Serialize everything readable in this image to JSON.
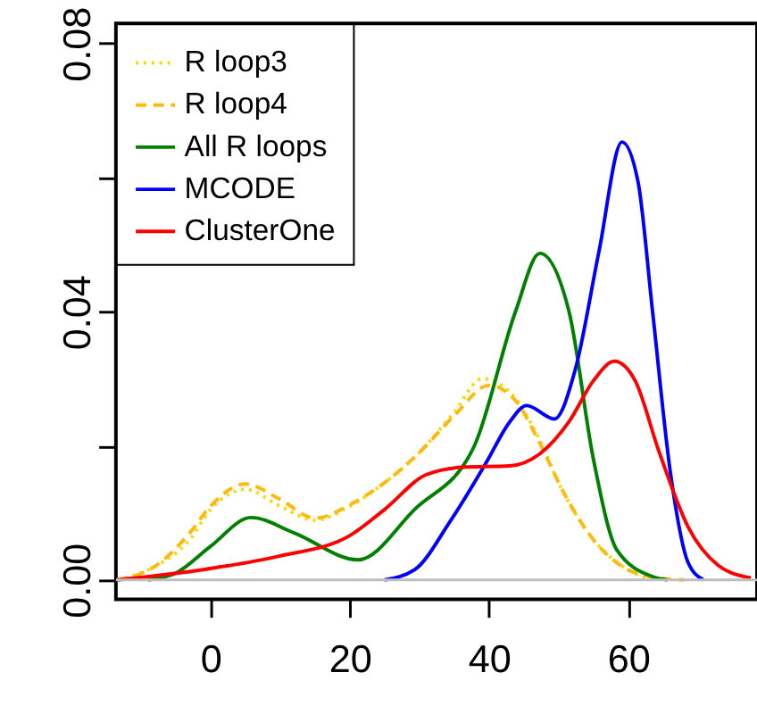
{
  "chart_data": {
    "type": "line",
    "xlim": [
      -13.6,
      78.5
    ],
    "ylim": [
      -0.0029,
      0.083
    ],
    "xticks": [
      0,
      20,
      40,
      60
    ],
    "yticks": [
      {
        "value": 0,
        "label": "0.00"
      },
      {
        "value": 0.02,
        "label": null
      },
      {
        "value": 0.04,
        "label": "0.04"
      },
      {
        "value": 0.06,
        "label": null
      },
      {
        "value": 0.08,
        "label": "0.08"
      }
    ],
    "grid": false,
    "legend": "top left",
    "marker": "none",
    "ref_lines": [
      {
        "axis": "y",
        "value": 0,
        "color": "#bebebe",
        "line_style": "solid"
      }
    ],
    "series": [
      {
        "name": "R loop3",
        "color": "#ffd700",
        "line_style": "dotted",
        "x": [
          -13.4,
          -8,
          -3,
          0,
          5,
          10,
          15,
          20,
          25,
          30,
          35,
          39,
          43,
          46.4,
          50.7,
          55,
          60,
          63.5
        ],
        "values": [
          0,
          0.002,
          0.006,
          0.0105,
          0.0135,
          0.011,
          0.0089,
          0.011,
          0.0145,
          0.019,
          0.025,
          0.03,
          0.028,
          0.0227,
          0.013,
          0.006,
          0.0015,
          0
        ]
      },
      {
        "name": "R loop4",
        "color": "#ffb90f",
        "line_style": "dashed",
        "x": [
          -13.4,
          -8,
          -3,
          0,
          5,
          10,
          15,
          20,
          25,
          30,
          35,
          40,
          44,
          47,
          51,
          55,
          60,
          65,
          68
        ],
        "values": [
          0,
          0.002,
          0.007,
          0.011,
          0.0143,
          0.012,
          0.0092,
          0.0112,
          0.0145,
          0.019,
          0.0245,
          0.029,
          0.0265,
          0.021,
          0.0125,
          0.006,
          0.0015,
          0.0002,
          0
        ]
      },
      {
        "name": "All R loops",
        "color": "#008000",
        "line_style": "solid",
        "x": [
          -9,
          -5,
          0,
          5.8,
          12,
          21.2,
          29.3,
          37.9,
          43.8,
          47.3,
          51.5,
          55,
          58.4,
          63.5,
          65.6
        ],
        "values": [
          0,
          0.001,
          0.005,
          0.0093,
          0.007,
          0.003,
          0.0105,
          0.02,
          0.04,
          0.0487,
          0.04,
          0.018,
          0.0044,
          0.0005,
          0
        ]
      },
      {
        "name": "MCODE",
        "color": "#0000ff",
        "line_style": "solid",
        "x": [
          25,
          29.3,
          34.4,
          39.6,
          43,
          45.4,
          49.4,
          52.4,
          55.8,
          59.1,
          61.4,
          63.5,
          66.1,
          68.6,
          70.8
        ],
        "values": [
          0,
          0.0015,
          0.0087,
          0.0175,
          0.0236,
          0.026,
          0.024,
          0.0314,
          0.049,
          0.0653,
          0.0594,
          0.04,
          0.0157,
          0.0026,
          0
        ]
      },
      {
        "name": "ClusterOne",
        "color": "#ff0000",
        "line_style": "solid",
        "x": [
          -13.4,
          -0.6,
          9.7,
          20,
          25,
          31,
          36.2,
          43,
          47.3,
          51.5,
          55,
          58,
          61,
          64.4,
          68.6,
          72.9,
          77.6
        ],
        "values": [
          0,
          0.0016,
          0.0035,
          0.0066,
          0.0105,
          0.0157,
          0.0168,
          0.017,
          0.0188,
          0.0236,
          0.0297,
          0.0326,
          0.0297,
          0.0192,
          0.0079,
          0.0022,
          0.0003
        ]
      }
    ]
  }
}
